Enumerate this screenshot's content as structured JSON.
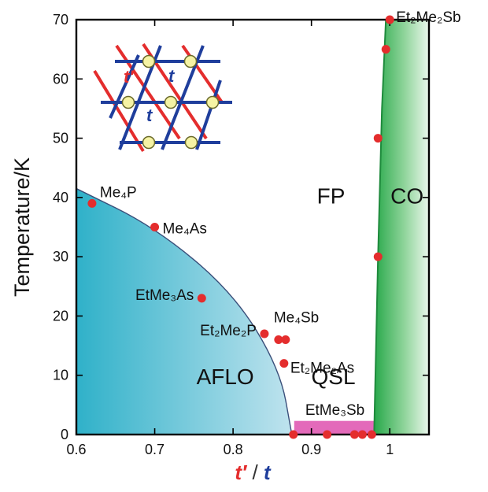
{
  "chart_data": {
    "type": "scatter",
    "xlim": [
      0.6,
      1.05
    ],
    "ylim": [
      0,
      70
    ],
    "x_ticks": [
      "0.6",
      "0.7",
      "0.8",
      "0.9",
      "1"
    ],
    "y_ticks": [
      "0",
      "10",
      "20",
      "30",
      "40",
      "50",
      "60",
      "70"
    ],
    "ylabel": "Temperature/K",
    "xlabel": {
      "part1": "t′",
      "slash": " / ",
      "part2": "t"
    },
    "regions": [
      {
        "name": "FP",
        "label": "FP",
        "label_at": [
          0.925,
          39
        ],
        "color": "#ffffff"
      },
      {
        "name": "CO",
        "label": "CO",
        "label_at": [
          1.022,
          39
        ],
        "color": "#27a84a"
      },
      {
        "name": "AFLO",
        "label": "AFLO",
        "label_at": [
          0.79,
          8.5
        ],
        "color": "#3fb0c8"
      },
      {
        "name": "QSL",
        "label": "QSL",
        "label_at": [
          0.928,
          8.5
        ],
        "color": "#ffffff"
      },
      {
        "name": "EtMe3Sb-band",
        "label": "",
        "color": "#e05ab3"
      }
    ],
    "afl_boundary": [
      [
        0.6,
        41.5
      ],
      [
        0.7,
        35
      ],
      [
        0.8,
        24
      ],
      [
        0.86,
        11
      ],
      [
        0.875,
        0
      ]
    ],
    "co_boundary": [
      [
        0.98,
        0
      ],
      [
        0.985,
        30
      ],
      [
        0.99,
        55
      ],
      [
        0.995,
        70
      ]
    ],
    "series": [
      {
        "name": "",
        "color": "#e42d2d",
        "points": [
          {
            "x": 0.62,
            "y": 39,
            "label": "Me₄P"
          },
          {
            "x": 0.7,
            "y": 35,
            "label": "Me₄As"
          },
          {
            "x": 0.76,
            "y": 23,
            "label": "EtMe₃As"
          },
          {
            "x": 0.84,
            "y": 17,
            "label": "Et₂Me₂P"
          },
          {
            "x": 0.858,
            "y": 16,
            "label": ""
          },
          {
            "x": 0.867,
            "y": 16,
            "label": ""
          },
          {
            "x": 0.865,
            "y": 12,
            "label": ""
          },
          {
            "x": 0.877,
            "y": 0,
            "label": ""
          },
          {
            "x": 0.92,
            "y": 0,
            "label": ""
          },
          {
            "x": 0.955,
            "y": 0,
            "label": ""
          },
          {
            "x": 0.965,
            "y": 0,
            "label": ""
          },
          {
            "x": 0.977,
            "y": 0,
            "label": ""
          },
          {
            "x": 0.985,
            "y": 30,
            "label": ""
          },
          {
            "x": 0.985,
            "y": 50,
            "label": ""
          },
          {
            "x": 0.995,
            "y": 65,
            "label": ""
          },
          {
            "x": 1.0,
            "y": 70,
            "label": "Et₂Me₂Sb"
          }
        ]
      }
    ],
    "annotations": [
      {
        "text": "Me₄Sb",
        "at": [
          0.858,
          16
        ]
      },
      {
        "text": "Et₂Me₂As",
        "at": [
          0.865,
          12
        ]
      },
      {
        "text": "EtMe₃Sb",
        "at": [
          0.93,
          0
        ]
      }
    ],
    "inset": {
      "t_prime_label": "t′",
      "t_label": "t",
      "t_prime_color": "#e42d2d",
      "t_color": "#1f3e9c"
    }
  }
}
